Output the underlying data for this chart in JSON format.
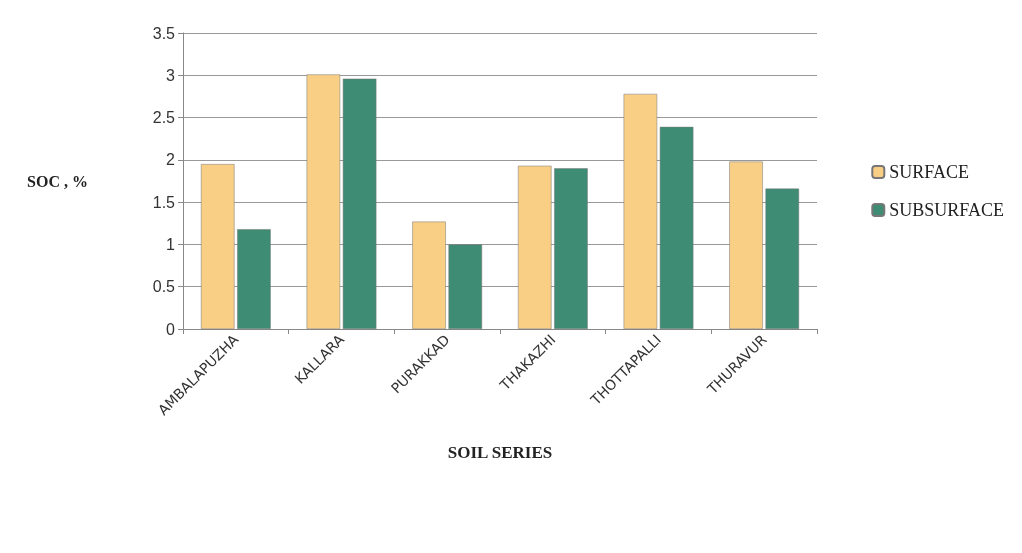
{
  "chart_data": {
    "type": "bar",
    "xlabel": "SOIL SERIES",
    "ylabel": "SOC , %",
    "categories": [
      "AMBALAPUZHA",
      "KALLARA",
      "PURAKKAD",
      "THAKAZHI",
      "THOTTAPALLI",
      "THURAVUR"
    ],
    "series": [
      {
        "name": "SURFACE",
        "color": "#f9cf86",
        "values": [
          1.95,
          3.01,
          1.27,
          1.93,
          2.78,
          1.98
        ]
      },
      {
        "name": "SUBSURFACE",
        "color": "#3e8c74",
        "values": [
          1.18,
          2.96,
          1.0,
          1.9,
          2.39,
          1.66
        ]
      }
    ],
    "ylim": [
      0,
      3.5
    ],
    "yticks": [
      0,
      0.5,
      1,
      1.5,
      2,
      2.5,
      3,
      3.5
    ],
    "grid": "y",
    "legend": "right"
  }
}
